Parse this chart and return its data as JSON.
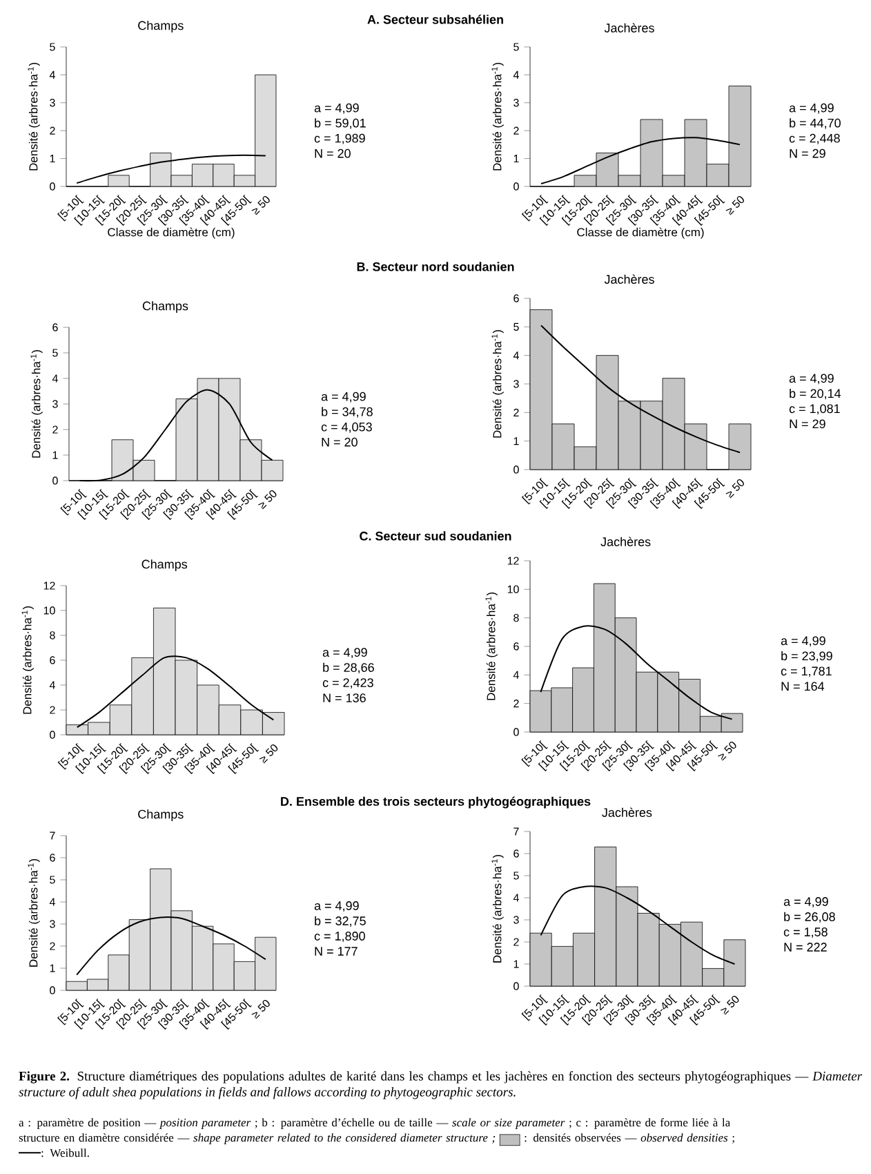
{
  "chart_data": [
    {
      "type": "bar",
      "subtitle": "Champs",
      "xlabel": "Classe de diamètre (cm)",
      "ylabel": "Densité (arbres·ha$^{-1}$)",
      "categories": [
        "[5-10[",
        "[10-15[",
        "[15-20[",
        "[20-25[",
        "[25-30[",
        "[30-35[",
        "[35-40[",
        "[40-45[",
        "[45-50[",
        "≥ 50"
      ],
      "ylim": [
        0,
        5
      ],
      "yticks": [
        0,
        1,
        2,
        3,
        4,
        5
      ],
      "series": [
        {
          "type": "bar",
          "color": "#dcdcdc",
          "values": [
            0,
            0,
            0.4,
            0,
            1.2,
            0.4,
            0.8,
            0.8,
            0.4,
            4.0
          ]
        },
        {
          "type": "line",
          "color": "#000000",
          "values": [
            0.12,
            0.35,
            0.55,
            0.72,
            0.87,
            0.97,
            1.05,
            1.1,
            1.12,
            1.1
          ]
        }
      ],
      "annotations": [
        "a = 4,99",
        "b = 59,01",
        "c = 1,989",
        "N = 20"
      ]
    },
    {
      "type": "bar",
      "subtitle": "Jachères",
      "xlabel": "Classe de diamètre (cm)",
      "ylabel": "Densité (arbres·ha$^{-1}$)",
      "categories": [
        "[5-10[",
        "[10-15[",
        "[15-20[",
        "[20-25[",
        "[25-30[",
        "[30-35[",
        "[35-40[",
        "[40-45[",
        "[45-50[",
        "≥ 50"
      ],
      "ylim": [
        0,
        5
      ],
      "yticks": [
        0,
        1,
        2,
        3,
        4,
        5
      ],
      "series": [
        {
          "type": "bar",
          "color": "#c4c4c4",
          "values": [
            0,
            0,
            0.4,
            1.2,
            0.4,
            2.4,
            0.4,
            2.4,
            0.8,
            3.6
          ]
        },
        {
          "type": "line",
          "color": "#000000",
          "values": [
            0.1,
            0.35,
            0.7,
            1.05,
            1.35,
            1.6,
            1.72,
            1.75,
            1.65,
            1.5
          ]
        }
      ],
      "annotations": [
        "a = 4,99",
        "b = 44,70",
        "c = 2,448",
        "N = 29"
      ]
    },
    {
      "type": "bar",
      "subtitle": "Champs",
      "ylabel": "Densité (arbres·ha$^{-1}$)",
      "categories": [
        "[5-10[",
        "[10-15[",
        "[15-20[",
        "[20-25[",
        "[25-30[",
        "[30-35[",
        "[35-40[",
        "[40-45[",
        "[45-50[",
        "≥ 50"
      ],
      "ylim": [
        0,
        6
      ],
      "yticks": [
        0,
        1,
        2,
        3,
        4,
        5,
        6
      ],
      "series": [
        {
          "type": "bar",
          "color": "#dcdcdc",
          "values": [
            0,
            0,
            1.6,
            0.8,
            0,
            3.2,
            4.0,
            4.0,
            1.6,
            0.8
          ]
        },
        {
          "type": "line",
          "color": "#000000",
          "values": [
            0,
            0.02,
            0.25,
            0.9,
            2.0,
            3.1,
            3.55,
            3.0,
            1.5,
            0.8
          ]
        }
      ],
      "annotations": [
        "a = 4,99",
        "b = 34,78",
        "c = 4,053",
        "N = 20"
      ]
    },
    {
      "type": "bar",
      "subtitle": "Jachères",
      "ylabel": "Densité (arbres·ha$^{-1}$)",
      "categories": [
        "[5-10[",
        "[10-15[",
        "[15-20[",
        "[20-25[",
        "[25-30[",
        "[30-35[",
        "[35-40[",
        "[40-45[",
        "[45-50[",
        "≥ 50"
      ],
      "ylim": [
        0,
        6
      ],
      "yticks": [
        0,
        1,
        2,
        3,
        4,
        5,
        6
      ],
      "series": [
        {
          "type": "bar",
          "color": "#c4c4c4",
          "values": [
            5.6,
            1.6,
            0.8,
            4.0,
            2.4,
            2.4,
            3.2,
            1.6,
            0,
            1.6
          ]
        },
        {
          "type": "line",
          "color": "#000000",
          "values": [
            5.05,
            4.3,
            3.6,
            2.9,
            2.35,
            1.9,
            1.5,
            1.15,
            0.85,
            0.6
          ]
        }
      ],
      "annotations": [
        "a = 4,99",
        "b = 20,14",
        "c = 1,081",
        "N = 29"
      ]
    },
    {
      "type": "bar",
      "subtitle": "Champs",
      "ylabel": "Densité (arbres·ha$^{-1}$)",
      "categories": [
        "[5-10[",
        "[10-15[",
        "[15-20[",
        "[20-25[",
        "[25-30[",
        "[30-35[",
        "[35-40[",
        "[40-45[",
        "[45-50[",
        "≥ 50"
      ],
      "ylim": [
        0,
        12
      ],
      "yticks": [
        0,
        2,
        4,
        6,
        8,
        10,
        12
      ],
      "series": [
        {
          "type": "bar",
          "color": "#dcdcdc",
          "values": [
            0.8,
            1.0,
            2.4,
            6.2,
            10.2,
            6.0,
            4.0,
            2.4,
            2.0,
            1.8
          ]
        },
        {
          "type": "line",
          "color": "#000000",
          "values": [
            0.6,
            1.8,
            3.3,
            4.8,
            6.2,
            6.2,
            5.3,
            3.9,
            2.4,
            1.2
          ]
        }
      ],
      "annotations": [
        "a = 4,99",
        "b = 28,66",
        "c = 2,423",
        "N = 136"
      ]
    },
    {
      "type": "bar",
      "subtitle": "Jachères",
      "ylabel": "Densité (arbres·ha$^{-1}$)",
      "categories": [
        "[5-10[",
        "[10-15[",
        "[15-20[",
        "[20-25[",
        "[25-30[",
        "[30-35[",
        "[35-40[",
        "[40-45[",
        "[45-50[",
        "≥ 50"
      ],
      "ylim": [
        0,
        12
      ],
      "yticks": [
        0,
        2,
        4,
        6,
        8,
        10,
        12
      ],
      "series": [
        {
          "type": "bar",
          "color": "#c4c4c4",
          "values": [
            2.9,
            3.1,
            4.5,
            10.4,
            8.0,
            4.2,
            4.2,
            3.7,
            1.1,
            1.3
          ]
        },
        {
          "type": "line",
          "color": "#000000",
          "values": [
            2.8,
            6.5,
            7.4,
            7.2,
            6.2,
            4.8,
            3.6,
            2.4,
            1.4,
            0.9
          ]
        }
      ],
      "annotations": [
        "a = 4,99",
        "b = 23,99",
        "c = 1,781",
        "N = 164"
      ]
    },
    {
      "type": "bar",
      "subtitle": "Champs",
      "ylabel": "Densité (arbres·ha$^{-1}$)",
      "categories": [
        "[5-10[",
        "[10-15[",
        "[15-20[",
        "[20-25[",
        "[25-30[",
        "[30-35[",
        "[35-40[",
        "[40-45[",
        "[45-50[",
        "≥ 50"
      ],
      "ylim": [
        0,
        7
      ],
      "yticks": [
        0,
        1,
        2,
        3,
        4,
        5,
        6,
        7
      ],
      "series": [
        {
          "type": "bar",
          "color": "#dcdcdc",
          "values": [
            0.4,
            0.5,
            1.6,
            3.2,
            5.5,
            3.6,
            2.9,
            2.1,
            1.3,
            2.4
          ]
        },
        {
          "type": "line",
          "color": "#000000",
          "values": [
            0.7,
            1.8,
            2.6,
            3.1,
            3.3,
            3.25,
            2.9,
            2.5,
            2.0,
            1.4
          ]
        }
      ],
      "annotations": [
        "a = 4,99",
        "b = 32,75",
        "c = 1,890",
        "N = 177"
      ]
    },
    {
      "type": "bar",
      "subtitle": "Jachères",
      "ylabel": "Densité (arbres·ha$^{-1}$)",
      "categories": [
        "[5-10[",
        "[10-15[",
        "[15-20[",
        "[20-25[",
        "[25-30[",
        "[30-35[",
        "[35-40[",
        "[40-45[",
        "[45-50[",
        "≥ 50"
      ],
      "ylim": [
        0,
        7
      ],
      "yticks": [
        0,
        1,
        2,
        3,
        4,
        5,
        6,
        7
      ],
      "series": [
        {
          "type": "bar",
          "color": "#c4c4c4",
          "values": [
            2.4,
            1.8,
            2.4,
            6.3,
            4.5,
            3.3,
            2.8,
            2.9,
            0.8,
            2.1
          ]
        },
        {
          "type": "line",
          "color": "#000000",
          "values": [
            2.3,
            4.1,
            4.5,
            4.45,
            4.0,
            3.4,
            2.7,
            2.0,
            1.4,
            1.0
          ]
        }
      ],
      "annotations": [
        "a = 4,99",
        "b = 26,08",
        "c = 1,58",
        "N = 222"
      ]
    },
    {
      "type": "other",
      "annotations": [
        "A. Secteur subsahélien",
        "B. Secteur nord soudanien",
        "C. Secteur sud soudanien",
        "D. Ensemble des trois secteurs phytogéographiques",
        "**Figure 2.** Structure diamétriques des populations adultes de karité dans les champs et les jachères en fonction des secteurs phytogéographiques — *Diameter structure of adult shea populations in fields and fallows according to phytogeographic sectors.*",
        "a : paramètre de position — *position parameter* ; b : paramètre d’échelle ou de taille — *scale or size parameter* ; c : paramètre de forme liée à la structure en diamètre considérée — *shape parameter related to the considered diameter structure ;*",
        ": densités observées — *observed densities* ;",
        ": Weibull."
      ]
    }
  ]
}
